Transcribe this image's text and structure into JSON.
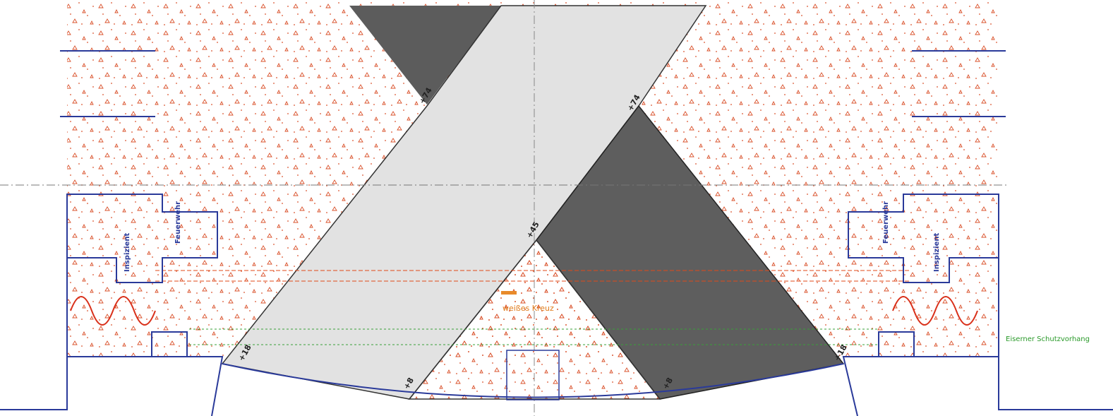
{
  "labels": {
    "top_left": "+74",
    "top_right": "+74",
    "center": "+45",
    "bottom_left_outer": "+18",
    "bottom_left_inner": "+8",
    "bottom_right_inner": "+8",
    "bottom_right_outer": "+18"
  },
  "rooms": {
    "left_inspizient": "Inspizient",
    "left_feuerwehr": "Feuerwehr",
    "right_feuerwehr": "Feuerwehr",
    "right_inspizient": "Inspizient"
  },
  "marker": "weißes Kreuz",
  "curtain": "Eiserner Schutzvorhang"
}
